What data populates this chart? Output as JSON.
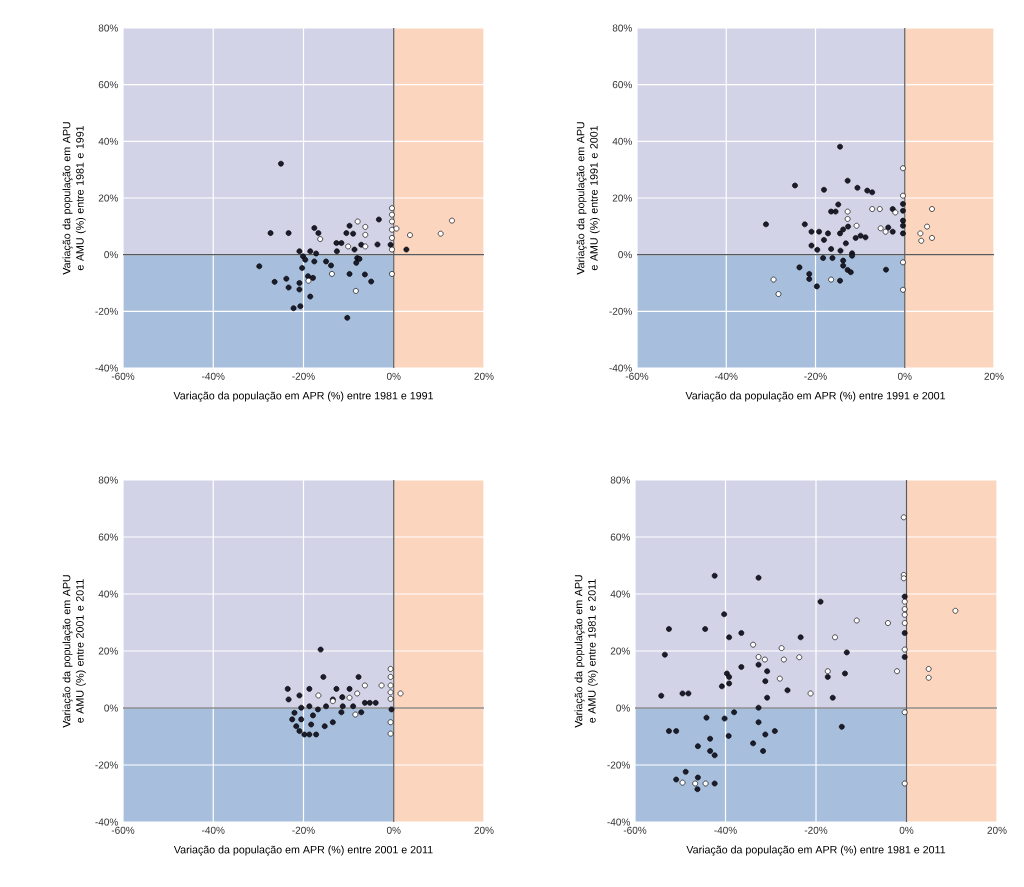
{
  "chart_data": [
    {
      "type": "scatter",
      "xlabel": "Variação da população em APR (%) entre 1981 e 1991",
      "ylabel": "Variação da população em APU e AMU (%) entre 1981 e 1991",
      "xlim": [
        -60,
        20
      ],
      "ylim": [
        -40,
        80
      ],
      "xticks": [
        {
          "value": -60,
          "label": "-60%"
        },
        {
          "value": -40,
          "label": "-40%"
        },
        {
          "value": -20,
          "label": "-20%"
        },
        {
          "value": 0,
          "label": "0%"
        },
        {
          "value": 20,
          "label": "20%"
        }
      ],
      "yticks": [
        {
          "value": -40,
          "label": "-40%"
        },
        {
          "value": -20,
          "label": "-20%"
        },
        {
          "value": 0,
          "label": "0%"
        },
        {
          "value": 20,
          "label": "20%"
        },
        {
          "value": 40,
          "label": "40%"
        },
        {
          "value": 60,
          "label": "60%"
        },
        {
          "value": 80,
          "label": "80%"
        }
      ],
      "grid": true,
      "marker": "circle",
      "bands": [
        {
          "axis": "y",
          "from": 0,
          "to": 80,
          "color": "#d3d3e8"
        },
        {
          "axis": "y",
          "from": -40,
          "to": 0,
          "color": "#a7bfdc"
        },
        {
          "axis": "x",
          "from": 0,
          "to": 20,
          "color": "#fcd5bf"
        }
      ],
      "series": [
        {
          "color": "#1c1c2c",
          "x": [
            -25.0,
            -27.3,
            -23.3,
            -17.6,
            -16.7,
            -29.8,
            -26.4,
            -23.8,
            -23.3,
            -22.2,
            -20.7,
            -20.9,
            -20.1,
            -19.6,
            -18.5,
            -17.2,
            -20.3,
            -20.9,
            -20.9,
            -19.0,
            -17.9,
            -18.5,
            -17.6,
            -15.0,
            -13.9,
            -12.7,
            -11.6,
            -12.6,
            -9.8,
            -10.5,
            -9.0,
            -8.7,
            -8.1,
            -8.3,
            -7.6,
            -9.8,
            -6.4,
            -5.0,
            -10.3,
            -3.3,
            -7.2,
            -3.6,
            -0.7,
            2.8
          ],
          "values": [
            32.1,
            7.6,
            7.6,
            9.4,
            7.6,
            -4.1,
            -9.6,
            -8.5,
            -11.6,
            -18.9,
            -18.2,
            1.2,
            -0.6,
            -1.8,
            1.2,
            0.4,
            -4.7,
            -10,
            -12.3,
            -7.6,
            -8.2,
            -14.8,
            -2.4,
            -2.4,
            -3.8,
            4.1,
            4.1,
            1.2,
            10.2,
            7.6,
            7.4,
            1.8,
            -1.2,
            -2.9,
            -1.5,
            -6.8,
            -7.0,
            -9.5,
            -22.3,
            12.4,
            3.5,
            3.6,
            3.5,
            1.8
          ]
        },
        {
          "color": "#ffffff",
          "x": [
            -8.0,
            -6.3,
            -6.3,
            -6.3,
            -16.3,
            -13.7,
            -18.9,
            -8.4,
            -10.1,
            -0.4,
            -0.4,
            -0.4,
            -0.4,
            -0.4,
            -0.4,
            -0.4,
            0.6,
            3.6,
            10.4,
            12.9
          ],
          "values": [
            11.7,
            9.8,
            7.0,
            2.9,
            5.5,
            -6.8,
            -9.2,
            -12.8,
            2.9,
            16.4,
            14.1,
            11.7,
            8.8,
            5.9,
            1.8,
            -6.8,
            9.2,
            6.9,
            7.4,
            12.0
          ]
        }
      ]
    },
    {
      "type": "scatter",
      "xlabel": "Variação da população em APR (%) entre 1991 e 2001",
      "ylabel": "Variação da população em APU e AMU (%) entre 1991 e 2001",
      "xlim": [
        -60,
        20
      ],
      "ylim": [
        -40,
        80
      ],
      "xticks": [
        {
          "value": -60,
          "label": "-60%"
        },
        {
          "value": -40,
          "label": "-40%"
        },
        {
          "value": -20,
          "label": "-20%"
        },
        {
          "value": 0,
          "label": "0%"
        },
        {
          "value": 20,
          "label": "20%"
        }
      ],
      "yticks": [
        {
          "value": -40,
          "label": "-40%"
        },
        {
          "value": -20,
          "label": "-20%"
        },
        {
          "value": 0,
          "label": "0%"
        },
        {
          "value": 20,
          "label": "20%"
        },
        {
          "value": 40,
          "label": "40%"
        },
        {
          "value": 60,
          "label": "60%"
        },
        {
          "value": 80,
          "label": "80%"
        }
      ],
      "grid": true,
      "marker": "circle",
      "bands": [
        {
          "axis": "y",
          "from": 0,
          "to": 80,
          "color": "#d3d3e8"
        },
        {
          "axis": "y",
          "from": -40,
          "to": 0,
          "color": "#a7bfdc"
        },
        {
          "axis": "x",
          "from": 0,
          "to": 20,
          "color": "#fcd5bf"
        }
      ],
      "series": [
        {
          "color": "#1c1c2c",
          "x": [
            -14.5,
            -24.6,
            -18.1,
            -12.8,
            -10.6,
            -8.4,
            -7.3,
            -31.1,
            -22.4,
            -20.9,
            -19.2,
            -17.2,
            -18.1,
            -14.9,
            -16.5,
            -15.5,
            -14.5,
            -13.8,
            -12.7,
            -11.0,
            -9.9,
            -8.8,
            -13.2,
            -20.9,
            -19.6,
            -16.5,
            -14.4,
            -18.3,
            -16.2,
            -11.8,
            -11.8,
            -13.8,
            -13.8,
            -12.8,
            -12.1,
            -23.6,
            -21.4,
            -21.4,
            -19.7,
            -14.5,
            -4.2,
            -2.7,
            -0.4,
            -0.4,
            -0.4,
            -0.4,
            -0.4,
            -3.7,
            -2.7
          ],
          "values": [
            38.1,
            24.4,
            22.9,
            26.1,
            23.6,
            22.6,
            22.0,
            10.7,
            10.7,
            8.1,
            8.1,
            7.5,
            5.2,
            17.7,
            15.2,
            15.2,
            7.5,
            8.9,
            9.9,
            5.9,
            6.7,
            6.1,
            4.0,
            3.2,
            1.7,
            2.0,
            1.4,
            -1.2,
            -1.2,
            0.5,
            -0.4,
            -2.1,
            -3.9,
            -5.4,
            -6.2,
            -4.5,
            -6.8,
            -8.6,
            -11.2,
            -9.2,
            -5.3,
            16.1,
            17.9,
            15.5,
            12.0,
            10.2,
            7.5,
            9.6,
            8.1
          ]
        },
        {
          "color": "#ffffff",
          "x": [
            -0.4,
            -0.4,
            -0.4,
            -0.4,
            -12.8,
            -12.8,
            -10.8,
            -7.3,
            -5.6,
            -2.1,
            -5.4,
            -4.3,
            -29.4,
            -28.3,
            -16.5,
            6.1,
            5.0,
            3.5,
            3.7,
            6.1
          ],
          "values": [
            30.5,
            20.8,
            -2.7,
            -12.4,
            15.2,
            12.6,
            10.2,
            16.1,
            16.1,
            14.9,
            9.3,
            8.1,
            -8.8,
            -13.9,
            -8.8,
            16.1,
            9.9,
            7.5,
            4.9,
            5.9
          ]
        }
      ]
    },
    {
      "type": "scatter",
      "xlabel": "Variação da população em APR (%) entre 2001 e 2011",
      "ylabel": "Variação da população em APU e AMU (%) entre 2001 e 2011",
      "xlim": [
        -60,
        20
      ],
      "ylim": [
        -40,
        80
      ],
      "xticks": [
        {
          "value": -60,
          "label": "-60%"
        },
        {
          "value": -40,
          "label": "-40%"
        },
        {
          "value": -20,
          "label": "-20%"
        },
        {
          "value": 0,
          "label": "0%"
        },
        {
          "value": 20,
          "label": "20%"
        }
      ],
      "yticks": [
        {
          "value": -40,
          "label": "-40%"
        },
        {
          "value": -20,
          "label": "-20%"
        },
        {
          "value": 0,
          "label": "0%"
        },
        {
          "value": 20,
          "label": "20%"
        },
        {
          "value": 40,
          "label": "40%"
        },
        {
          "value": 60,
          "label": "60%"
        },
        {
          "value": 80,
          "label": "80%"
        }
      ],
      "grid": true,
      "marker": "circle",
      "bands": [
        {
          "axis": "y",
          "from": 0,
          "to": 80,
          "color": "#d3d3e8"
        },
        {
          "axis": "y",
          "from": -40,
          "to": 0,
          "color": "#a7bfdc"
        },
        {
          "axis": "x",
          "from": 0,
          "to": 20,
          "color": "#fcd5bf"
        }
      ],
      "series": [
        {
          "color": "#1c1c2c",
          "x": [
            -16.2,
            -15.6,
            -7.8,
            -23.5,
            -18.7,
            -23.3,
            -20.9,
            -12.7,
            -9.8,
            -11.4,
            -13.5,
            -20.5,
            -18.7,
            -16.8,
            -15.0,
            -11.3,
            -9.0,
            -6.4,
            -5.3,
            -4.0,
            -7.2,
            -11.6,
            -22.0,
            -22.5,
            -20.5,
            -17.9,
            -18.3,
            -21.6,
            -20.9,
            -19.8,
            -18.7,
            -17.2,
            -15.3,
            -13.5,
            -0.5
          ],
          "values": [
            20.5,
            10.9,
            10.9,
            6.7,
            6.7,
            3.0,
            4.4,
            6.7,
            6.7,
            3.8,
            3.0,
            0.1,
            0.6,
            -0.5,
            0.6,
            0.6,
            0.6,
            1.8,
            1.8,
            1.8,
            -1.5,
            -1.5,
            -1.7,
            -4.0,
            -4.0,
            -2.6,
            -5.8,
            -6.4,
            -8.1,
            -9.3,
            -9.3,
            -9.3,
            -6.4,
            -5.0,
            -0.5
          ]
        },
        {
          "color": "#ffffff",
          "x": [
            -6.4,
            -2.7,
            -8.1,
            -9.8,
            -16.7,
            -13.5,
            -8.5,
            -0.7,
            -0.7,
            -0.7,
            -0.7,
            -0.7,
            -0.7,
            -0.7,
            1.5
          ],
          "values": [
            7.9,
            7.9,
            5.1,
            3.6,
            4.4,
            2.4,
            -2.3,
            13.7,
            10.9,
            7.9,
            5.5,
            3.2,
            -5.0,
            -9.0,
            5.1
          ]
        }
      ]
    },
    {
      "type": "scatter",
      "xlabel": "Variação da população em APR (%) entre 1981 e 2011",
      "ylabel": "Variação da população em APU e AMU (%) entre 1981 e 2011",
      "xlim": [
        -60,
        20
      ],
      "ylim": [
        -40,
        80
      ],
      "xticks": [
        {
          "value": -60,
          "label": "-60%"
        },
        {
          "value": -40,
          "label": "-40%"
        },
        {
          "value": -20,
          "label": "-20%"
        },
        {
          "value": 0,
          "label": "0%"
        },
        {
          "value": 20,
          "label": "20%"
        }
      ],
      "yticks": [
        {
          "value": -40,
          "label": "-40%"
        },
        {
          "value": -20,
          "label": "-20%"
        },
        {
          "value": 0,
          "label": "0%"
        },
        {
          "value": 20,
          "label": "20%"
        },
        {
          "value": 40,
          "label": "40%"
        },
        {
          "value": 60,
          "label": "60%"
        },
        {
          "value": 80,
          "label": "80%"
        }
      ],
      "grid": true,
      "marker": "circle",
      "bands": [
        {
          "axis": "y",
          "from": 0,
          "to": 80,
          "color": "#d3d3e8"
        },
        {
          "axis": "y",
          "from": -40,
          "to": 0,
          "color": "#a7bfdc"
        },
        {
          "axis": "x",
          "from": 0,
          "to": 20,
          "color": "#fcd5bf"
        }
      ],
      "series": [
        {
          "color": "#1c1c2c",
          "x": [
            -42.4,
            -32.7,
            -19.0,
            -40.3,
            -0.4,
            -52.5,
            -44.5,
            -39.2,
            -36.5,
            -23.4,
            -13.2,
            -53.4,
            -32.7,
            -36.5,
            -30.8,
            -39.7,
            -39.2,
            -17.4,
            -13.6,
            -31.2,
            -39.2,
            -40.8,
            -26.3,
            -54.2,
            -49.5,
            -48.2,
            -30.8,
            -16.3,
            -32.7,
            -38.1,
            -44.2,
            -40.2,
            -32.7,
            -14.3,
            -52.5,
            -50.9,
            -29.1,
            -31.2,
            -39.3,
            -43.4,
            -33.9,
            -46.1,
            -43.4,
            -42.4,
            -31.7,
            -48.8,
            -46.1,
            -50.9,
            -42.4,
            -46.2,
            -0.4,
            -0.4
          ],
          "values": [
            46.4,
            45.7,
            37.3,
            32.9,
            39.1,
            27.7,
            27.7,
            24.8,
            26.3,
            24.8,
            19.5,
            18.7,
            15.2,
            14.4,
            12.9,
            12.1,
            10.9,
            10.9,
            12.1,
            9.4,
            8.6,
            7.6,
            6.2,
            4.3,
            5.1,
            5.1,
            3.6,
            3.6,
            0.1,
            -1.5,
            -3.4,
            -3.7,
            -5.0,
            -6.6,
            -8.1,
            -8.1,
            -8.1,
            -9.3,
            -9.8,
            -10.8,
            -12.4,
            -13.4,
            -15.1,
            -16.6,
            -15.1,
            -22.4,
            -24.4,
            -25.1,
            -26.5,
            -28.5,
            17.9,
            26.3
          ]
        },
        {
          "color": "#ffffff",
          "x": [
            -0.6,
            -0.6,
            -0.6,
            -0.4,
            -0.4,
            -0.4,
            -11.0,
            -4.1,
            -0.4,
            -15.8,
            -33.9,
            -27.6,
            -32.7,
            -31.3,
            -27.1,
            -23.7,
            -17.4,
            -2.1,
            -28.0,
            -21.2,
            -49.5,
            -46.7,
            -44.4,
            -0.4,
            -0.4,
            -0.4,
            4.9,
            4.9,
            10.8
          ],
          "values": [
            66.9,
            46.7,
            45.5,
            37.3,
            34.7,
            32.7,
            30.7,
            29.8,
            29.8,
            24.8,
            22.2,
            21.0,
            17.9,
            17.0,
            17.0,
            17.8,
            12.9,
            12.9,
            10.3,
            5.1,
            -26.2,
            -26.5,
            -26.5,
            -1.5,
            -26.5,
            20.5,
            13.7,
            10.6,
            34.1
          ]
        }
      ]
    }
  ]
}
